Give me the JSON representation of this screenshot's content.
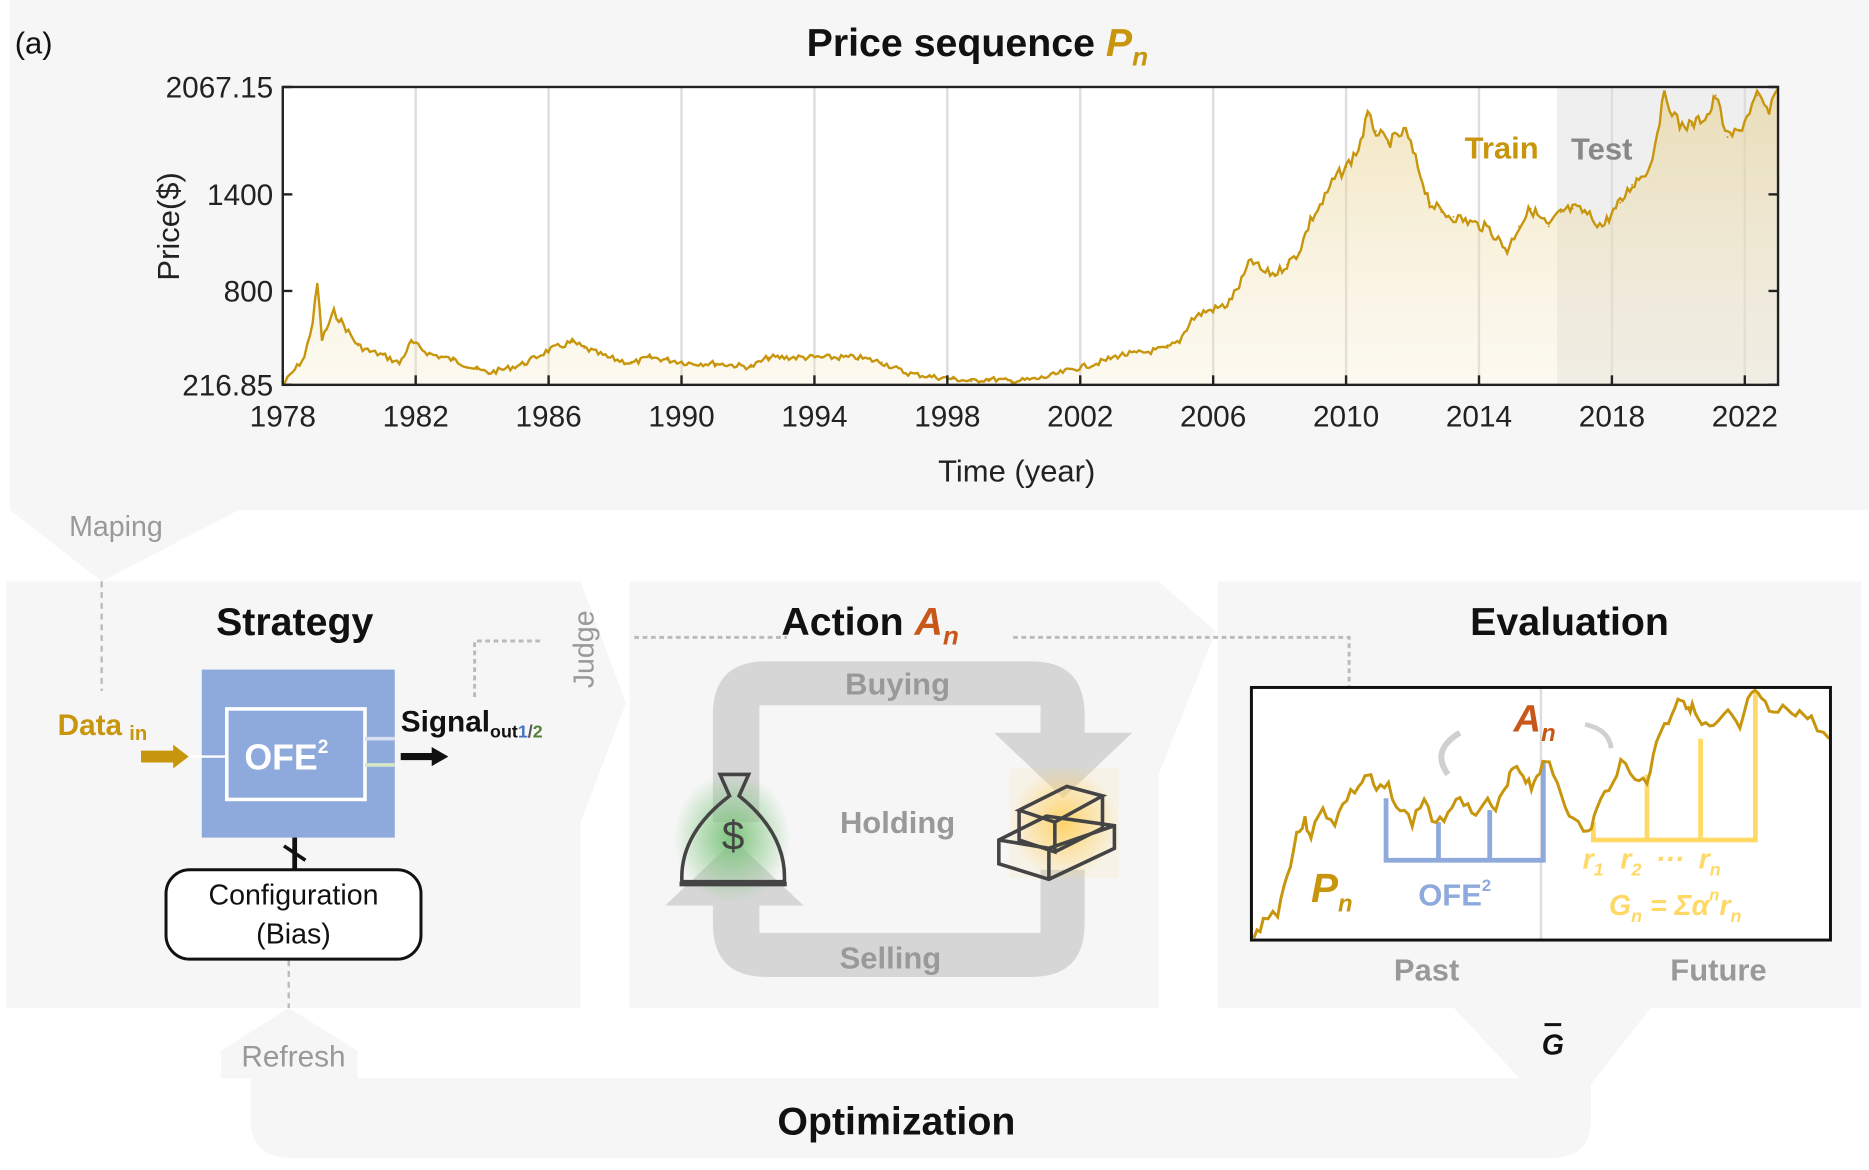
{
  "panel_label": "(a)",
  "top": {
    "title_main": "Price sequence ",
    "title_var": "P",
    "title_sub": "n"
  },
  "chart_data": {
    "type": "line",
    "title": "Price sequence Pn",
    "xlabel": "Time (year)",
    "ylabel": "Price($)",
    "xlim": [
      1978,
      2023
    ],
    "ylim": [
      216.85,
      2067.15
    ],
    "x_ticks": [
      "1978",
      "1982",
      "1986",
      "1990",
      "1994",
      "1998",
      "2002",
      "2006",
      "2010",
      "2014",
      "2018",
      "2022"
    ],
    "y_ticks": [
      "216.85",
      "800",
      "1400",
      "2067.15"
    ],
    "grid": "vertical",
    "annotations": [
      "Train",
      "Test"
    ],
    "train_test_split_year": 2016.35,
    "line_color": "#C8960C",
    "points": [
      [
        1978.0,
        217
      ],
      [
        1978.65,
        387
      ],
      [
        1978.9,
        609
      ],
      [
        1979.04,
        846
      ],
      [
        1979.18,
        498
      ],
      [
        1979.54,
        668
      ],
      [
        1979.76,
        609
      ],
      [
        1980.26,
        461
      ],
      [
        1980.62,
        424
      ],
      [
        1981.01,
        402
      ],
      [
        1981.51,
        350
      ],
      [
        1981.87,
        483
      ],
      [
        1982.41,
        409
      ],
      [
        1983.13,
        372
      ],
      [
        1983.84,
        313
      ],
      [
        1984.2,
        291
      ],
      [
        1984.92,
        328
      ],
      [
        1985.28,
        350
      ],
      [
        1985.99,
        431
      ],
      [
        1986.71,
        483
      ],
      [
        1987.07,
        446
      ],
      [
        1987.78,
        387
      ],
      [
        1988.5,
        350
      ],
      [
        1989.04,
        387
      ],
      [
        1989.58,
        372
      ],
      [
        1990.29,
        350
      ],
      [
        1991.01,
        350
      ],
      [
        1992.09,
        328
      ],
      [
        1992.62,
        387
      ],
      [
        1993.16,
        387
      ],
      [
        1994.59,
        387
      ],
      [
        1995.31,
        387
      ],
      [
        1996.03,
        357
      ],
      [
        1996.75,
        291
      ],
      [
        1997.46,
        269
      ],
      [
        1998.18,
        254
      ],
      [
        1998.72,
        239
      ],
      [
        1999.25,
        254
      ],
      [
        1999.97,
        239
      ],
      [
        2000.69,
        254
      ],
      [
        2001.05,
        269
      ],
      [
        2001.76,
        313
      ],
      [
        2002.48,
        350
      ],
      [
        2003.2,
        402
      ],
      [
        2003.91,
        417
      ],
      [
        2004.63,
        446
      ],
      [
        2004.99,
        491
      ],
      [
        2005.35,
        624
      ],
      [
        2005.71,
        668
      ],
      [
        2006.42,
        713
      ],
      [
        2006.78,
        831
      ],
      [
        2007.14,
        994
      ],
      [
        2007.5,
        920
      ],
      [
        2007.86,
        905
      ],
      [
        2008.22,
        964
      ],
      [
        2008.57,
        1038
      ],
      [
        2008.93,
        1238
      ],
      [
        2009.29,
        1349
      ],
      [
        2009.65,
        1497
      ],
      [
        2010.01,
        1571
      ],
      [
        2010.37,
        1682
      ],
      [
        2010.65,
        1889
      ],
      [
        2010.9,
        1793
      ],
      [
        2011.26,
        1719
      ],
      [
        2011.8,
        1793
      ],
      [
        2012.16,
        1571
      ],
      [
        2012.52,
        1349
      ],
      [
        2012.87,
        1290
      ],
      [
        2013.23,
        1260
      ],
      [
        2013.59,
        1238
      ],
      [
        2014.31,
        1186
      ],
      [
        2014.85,
        1053
      ],
      [
        2015.2,
        1201
      ],
      [
        2015.56,
        1312
      ],
      [
        2016.1,
        1201
      ],
      [
        2016.46,
        1290
      ],
      [
        2016.82,
        1312
      ],
      [
        2017.18,
        1290
      ],
      [
        2017.71,
        1201
      ],
      [
        2018.25,
        1349
      ],
      [
        2018.61,
        1460
      ],
      [
        2019.15,
        1571
      ],
      [
        2019.58,
        2015
      ],
      [
        2020.04,
        1830
      ],
      [
        2020.4,
        1830
      ],
      [
        2020.94,
        1904
      ],
      [
        2021.12,
        2015
      ],
      [
        2021.48,
        1756
      ],
      [
        2021.84,
        1793
      ],
      [
        2022.37,
        2015
      ],
      [
        2022.73,
        1904
      ],
      [
        2022.98,
        2052
      ]
    ]
  },
  "flow": {
    "maping": "Maping",
    "judge": "Judge",
    "refresh": "Refresh",
    "optimization": "Optimization",
    "g_bar": "G"
  },
  "strategy": {
    "title": "Strategy",
    "data_in": "Data",
    "data_in_sub": "in",
    "ofe": "OFE",
    "ofe_sup": "2",
    "signal": "Signal",
    "signal_sub_out": "out",
    "signal_sub_1": "1",
    "signal_sub_slash": "/",
    "signal_sub_2": "2",
    "config_line1": "Configuration",
    "config_line2": "(Bias)"
  },
  "action": {
    "title": "Action ",
    "var": "A",
    "var_sub": "n",
    "buying": "Buying",
    "holding": "Holding",
    "selling": "Selling",
    "cash_icon": "money-bag-icon",
    "gold_icon": "gold-bars-icon"
  },
  "evaluation": {
    "title": "Evaluation",
    "a_var": "A",
    "a_sub": "n",
    "p_var": "P",
    "p_sub": "n",
    "ofe": "OFE",
    "ofe_sup": "2",
    "r1": "r",
    "r1_sub": "1",
    "r2": "r",
    "r2_sub": "2",
    "dots": "···",
    "rn": "r",
    "rn_sub": "n",
    "g_formula_g": "G",
    "g_formula_sub": "n",
    "g_formula_rest": " = Σα",
    "g_formula_sup": "n",
    "g_formula_r": "r",
    "g_formula_rsub": "n",
    "past": "Past",
    "future": "Future"
  },
  "colors": {
    "gold": "#C8960C",
    "orange": "#C8581A",
    "blue": "#8EA9DB",
    "yellow": "#FFD966",
    "panel": "#F6F6F6",
    "arrow_gray": "#D0D0D0"
  }
}
